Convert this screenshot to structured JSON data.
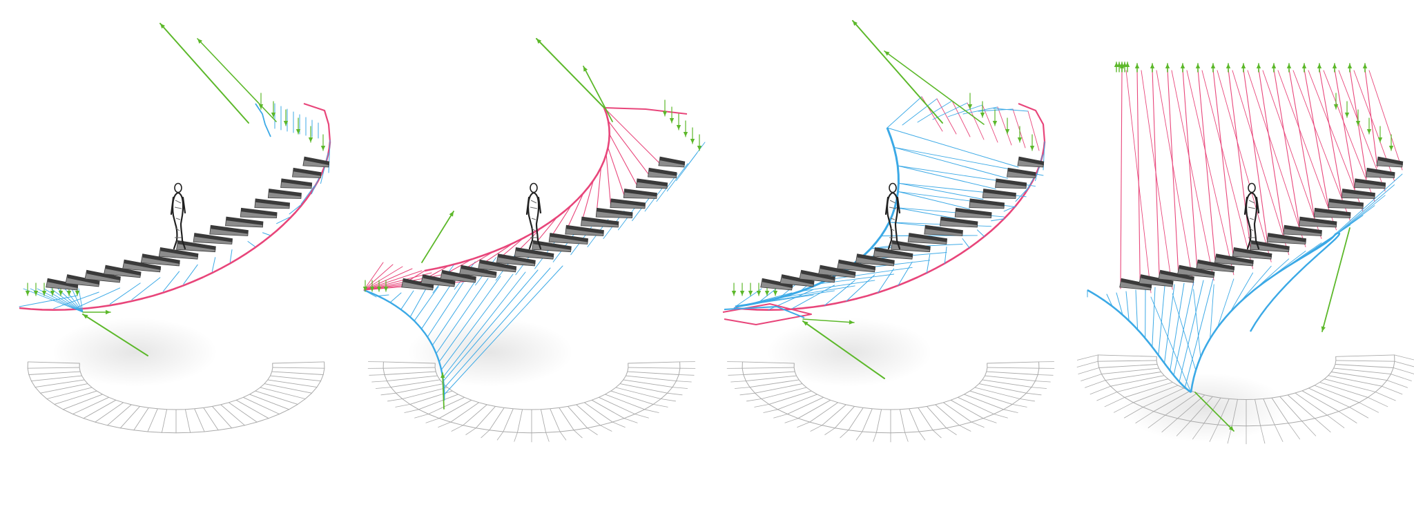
{
  "figure": {
    "panels": [
      {
        "id": 1,
        "variant": "cable-support"
      },
      {
        "id": 2,
        "variant": "mirrored-support"
      },
      {
        "id": 3,
        "variant": "cross-braced"
      },
      {
        "id": 4,
        "variant": "vertical-hangers"
      }
    ],
    "steps_per_panel": 17,
    "has_human_figure": true,
    "has_force_arrows": true,
    "has_floor_plan_projection": true
  },
  "colors": {
    "background": "#ffffff",
    "tension": "#e8457a",
    "compression": "#3ba9e6",
    "force": "#5cb82a",
    "tread_top": "#8c8c8c",
    "tread_side": "#3a3a3a",
    "projection": "#a9a9a9",
    "figure": "#222222"
  }
}
